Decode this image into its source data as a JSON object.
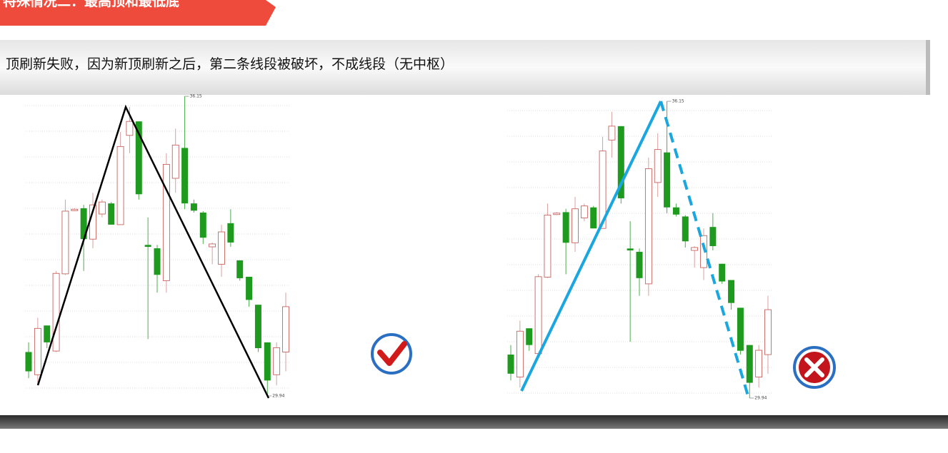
{
  "header": {
    "title": "特殊情况二：最高顶和最低底"
  },
  "note": "顶刷新失败，因为新顶刷新之后，第二条线段被破坏，不成线段（无中枢）",
  "charts": [
    {
      "high": 36.15,
      "low": 29.94,
      "verdict": "correct",
      "candles": [
        [
          30.85,
          31.05,
          30.31,
          30.45
        ],
        [
          30.38,
          31.56,
          30.16,
          31.34
        ],
        [
          31.4,
          31.4,
          30.93,
          31.05
        ],
        [
          30.87,
          32.53,
          30.85,
          32.48
        ],
        [
          32.47,
          34.01,
          32.45,
          33.77
        ],
        [
          33.78,
          33.83,
          33.77,
          33.81
        ],
        [
          33.83,
          33.9,
          32.53,
          33.19
        ],
        [
          33.19,
          34.15,
          33.0,
          33.9
        ],
        [
          33.71,
          34.01,
          33.64,
          33.96
        ],
        [
          33.93,
          33.96,
          33.49,
          33.49
        ],
        [
          33.49,
          35.41,
          33.49,
          35.11
        ],
        [
          35.34,
          35.93,
          34.97,
          35.63
        ],
        [
          35.63,
          35.63,
          34.01,
          34.12
        ],
        [
          33.07,
          33.64,
          31.12,
          33.03
        ],
        [
          33.0,
          33.07,
          32.08,
          32.45
        ],
        [
          32.33,
          34.97,
          32.08,
          34.74
        ],
        [
          34.45,
          35.48,
          34.15,
          35.14
        ],
        [
          35.08,
          36.15,
          33.81,
          33.93
        ],
        [
          33.93,
          34.01,
          33.74,
          33.78
        ],
        [
          33.74,
          33.77,
          33.09,
          33.22
        ],
        [
          33.03,
          33.12,
          32.67,
          33.09
        ],
        [
          32.67,
          33.49,
          32.41,
          33.34
        ],
        [
          33.52,
          33.81,
          33.03,
          33.12
        ],
        [
          32.75,
          32.75,
          32.33,
          32.38
        ],
        [
          32.41,
          32.41,
          31.79,
          31.93
        ],
        [
          31.83,
          31.83,
          30.85,
          30.93
        ],
        [
          31.05,
          31.05,
          29.94,
          30.26
        ],
        [
          30.38,
          31.05,
          30.16,
          30.94
        ],
        [
          30.85,
          32.08,
          30.45,
          31.79
        ]
      ]
    },
    {
      "high": 36.15,
      "low": 29.94,
      "verdict": "wrong",
      "candles": [
        [
          30.85,
          31.05,
          30.31,
          30.45
        ],
        [
          30.38,
          31.56,
          30.16,
          31.34
        ],
        [
          31.4,
          31.4,
          30.93,
          31.05
        ],
        [
          30.87,
          32.53,
          30.85,
          32.48
        ],
        [
          32.47,
          34.01,
          32.45,
          33.77
        ],
        [
          33.78,
          33.83,
          33.77,
          33.81
        ],
        [
          33.83,
          33.9,
          32.53,
          33.19
        ],
        [
          33.19,
          34.15,
          33.0,
          33.9
        ],
        [
          33.71,
          34.01,
          33.64,
          33.96
        ],
        [
          33.93,
          33.96,
          33.49,
          33.49
        ],
        [
          33.49,
          35.41,
          33.49,
          35.11
        ],
        [
          35.34,
          35.93,
          34.97,
          35.63
        ],
        [
          35.63,
          35.63,
          34.01,
          34.12
        ],
        [
          33.07,
          33.64,
          31.12,
          33.03
        ],
        [
          33.0,
          33.07,
          32.08,
          32.45
        ],
        [
          32.33,
          34.97,
          32.08,
          34.74
        ],
        [
          34.45,
          35.48,
          34.15,
          35.14
        ],
        [
          35.08,
          36.15,
          33.81,
          33.93
        ],
        [
          33.93,
          34.01,
          33.74,
          33.78
        ],
        [
          33.74,
          33.77,
          33.09,
          33.22
        ],
        [
          33.03,
          33.12,
          32.67,
          33.09
        ],
        [
          32.67,
          33.49,
          32.41,
          33.34
        ],
        [
          33.52,
          33.81,
          33.03,
          33.12
        ],
        [
          32.75,
          32.75,
          32.33,
          32.38
        ],
        [
          32.41,
          32.41,
          31.79,
          31.93
        ],
        [
          31.83,
          31.83,
          30.85,
          30.93
        ],
        [
          31.05,
          31.05,
          29.94,
          30.26
        ],
        [
          30.38,
          31.05,
          30.16,
          30.94
        ],
        [
          30.85,
          32.08,
          30.45,
          31.79
        ]
      ]
    }
  ]
}
